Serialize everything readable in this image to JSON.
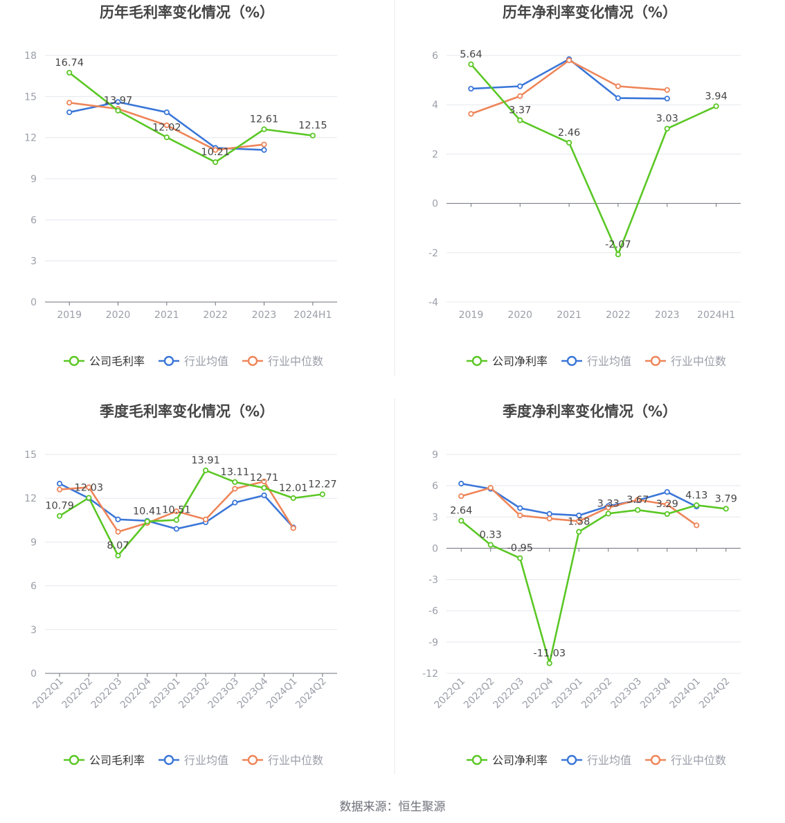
{
  "source": "数据来源：恒生聚源",
  "legend_labels": [
    "公司毛利率",
    "行业均值",
    "行业中位数"
  ],
  "colors": {
    "company": "#5ac724",
    "avg": "#3a76d8",
    "median": "#ee8559",
    "grid": "#e4e7ee",
    "axis": "#6e7079",
    "text": "#9a9ea8",
    "label": "#444444"
  },
  "chart_data": [
    {
      "type": "line",
      "title": "历年毛利率变化情况（%）",
      "categories": [
        "2019",
        "2020",
        "2021",
        "2022",
        "2023",
        "2024H1"
      ],
      "ylim": [
        0,
        18
      ],
      "yticks": [
        0,
        3,
        6,
        9,
        12,
        15,
        18
      ],
      "grid": true,
      "legend": "bottom",
      "series": [
        {
          "name": "公司毛利率",
          "values": [
            16.74,
            13.97,
            12.02,
            10.21,
            12.61,
            12.15
          ],
          "labels": [
            "16.74",
            "13.97",
            "12.02",
            "10.21",
            "12.61",
            "12.15"
          ]
        },
        {
          "name": "行业均值",
          "values": [
            13.85,
            14.6,
            13.85,
            11.25,
            11.1,
            null
          ]
        },
        {
          "name": "行业中位数",
          "values": [
            14.55,
            14.1,
            12.9,
            11.1,
            11.5,
            null
          ]
        }
      ]
    },
    {
      "type": "line",
      "title": "历年净利率变化情况（%）",
      "categories": [
        "2019",
        "2020",
        "2021",
        "2022",
        "2023",
        "2024H1"
      ],
      "ylim": [
        -4,
        6
      ],
      "yticks": [
        -4,
        -2,
        0,
        2,
        4,
        6
      ],
      "grid": true,
      "legend": "bottom",
      "series": [
        {
          "name": "公司净利率",
          "values": [
            5.64,
            3.37,
            2.46,
            -2.07,
            3.03,
            3.94
          ],
          "labels": [
            "5.64",
            "3.37",
            "2.46",
            "-2.07",
            "3.03",
            "3.94"
          ]
        },
        {
          "name": "行业均值",
          "values": [
            4.65,
            4.75,
            5.85,
            4.27,
            4.25,
            null
          ]
        },
        {
          "name": "行业中位数",
          "values": [
            3.63,
            4.35,
            5.8,
            4.75,
            4.6,
            null
          ]
        }
      ]
    },
    {
      "type": "line",
      "title": "季度毛利率变化情况（%）",
      "categories": [
        "2022Q1",
        "2022Q2",
        "2022Q3",
        "2022Q4",
        "2023Q1",
        "2023Q2",
        "2023Q3",
        "2023Q4",
        "2024Q1",
        "2024Q2"
      ],
      "ylim": [
        0,
        15
      ],
      "yticks": [
        0,
        3,
        6,
        9,
        12,
        15
      ],
      "grid": true,
      "legend": "bottom",
      "series": [
        {
          "name": "公司毛利率",
          "values": [
            10.79,
            12.03,
            8.07,
            10.41,
            10.51,
            13.91,
            13.11,
            12.71,
            12.01,
            12.27
          ],
          "labels": [
            "10.79",
            "12.03",
            "8.07",
            "10.41",
            "10.51",
            "13.91",
            "13.11",
            "12.71",
            "12.01",
            "12.27"
          ]
        },
        {
          "name": "行业均值",
          "values": [
            13.0,
            12.0,
            10.55,
            10.45,
            9.9,
            10.35,
            11.7,
            12.2,
            10.0,
            null
          ]
        },
        {
          "name": "行业中位数",
          "values": [
            12.6,
            12.75,
            9.7,
            10.3,
            11.1,
            10.55,
            12.65,
            13.15,
            9.95,
            null
          ]
        }
      ]
    },
    {
      "type": "line",
      "title": "季度净利率变化情况（%）",
      "categories": [
        "2022Q1",
        "2022Q2",
        "2022Q3",
        "2022Q4",
        "2023Q1",
        "2023Q2",
        "2023Q3",
        "2023Q4",
        "2024Q1",
        "2024Q2"
      ],
      "ylim": [
        -12,
        9
      ],
      "yticks": [
        -12,
        -9,
        -6,
        -3,
        0,
        3,
        6,
        9
      ],
      "grid": true,
      "legend": "bottom",
      "series": [
        {
          "name": "公司净利率",
          "values": [
            2.64,
            0.33,
            -0.95,
            -11.03,
            1.58,
            3.33,
            3.67,
            3.29,
            4.13,
            3.79
          ],
          "labels": [
            "2.64",
            "0.33",
            "-0.95",
            "-11.03",
            "1.58",
            "3.33",
            "3.67",
            "3.29",
            "4.13",
            "3.79"
          ]
        },
        {
          "name": "行业均值",
          "values": [
            6.2,
            5.7,
            3.85,
            3.3,
            3.15,
            4.05,
            4.6,
            5.4,
            4.0,
            null
          ]
        },
        {
          "name": "行业中位数",
          "values": [
            5.0,
            5.8,
            3.15,
            2.85,
            2.6,
            3.9,
            4.65,
            4.2,
            2.2,
            null
          ]
        }
      ]
    }
  ]
}
